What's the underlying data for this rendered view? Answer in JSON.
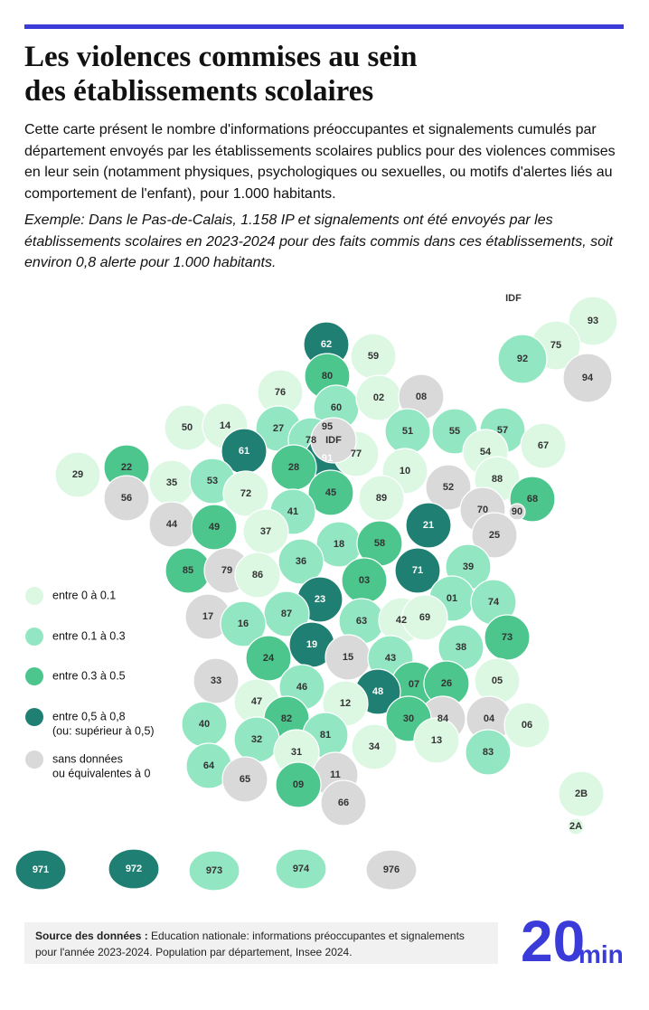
{
  "header": {
    "title": [
      "Les violences commises au sein",
      "des établissements scolaires"
    ],
    "description": "Cette carte présent le nombre d'informations préoccupantes et  signalements cumulés par département envoyés par les établissements  scolaires publics pour des violences commises en leur sein (notamment physiques, psychologiques ou sexuelles, ou motifs d'alertes liés au comportement de l'enfant), pour 1.000 habitants.",
    "example": "Exemple: Dans le Pas-de-Calais, 1.158 IP et signalements ont été envoyés par les établissements scolaires en 2023-2024 pour des faits commis dans ces établissements, soit environ 0,8 alerte pour 1.000 habitants."
  },
  "legend": [
    {
      "lines": [
        "entre 0 à 0.1"
      ],
      "color": "#dcf8e3"
    },
    {
      "lines": [
        "entre 0.1 à 0.3"
      ],
      "color": "#92e6c2"
    },
    {
      "lines": [
        "entre 0.3 à 0.5"
      ],
      "color": "#4cc68d"
    },
    {
      "lines": [
        "entre 0,5 à 0,8",
        "(ou: supérieur à 0,5)"
      ],
      "color": "#1e7f72"
    },
    {
      "lines": [
        "sans données",
        "ou équivalentes à 0"
      ],
      "color": "#d9d9d9"
    }
  ],
  "departments": [
    {
      "code": "62",
      "class": 3
    },
    {
      "code": "59",
      "class": 0
    },
    {
      "code": "80",
      "class": 2
    },
    {
      "code": "76",
      "class": 0
    },
    {
      "code": "60",
      "class": 1
    },
    {
      "code": "02",
      "class": 0
    },
    {
      "code": "08",
      "class": 4
    },
    {
      "code": "50",
      "class": 0
    },
    {
      "code": "14",
      "class": 0
    },
    {
      "code": "27",
      "class": 1
    },
    {
      "code": "95",
      "class": 0
    },
    {
      "code": "51",
      "class": 1
    },
    {
      "code": "55",
      "class": 1
    },
    {
      "code": "57",
      "class": 1
    },
    {
      "code": "67",
      "class": 0
    },
    {
      "code": "78",
      "class": 1
    },
    {
      "code": "61",
      "class": 3
    },
    {
      "code": "91",
      "class": 3
    },
    {
      "code": "77",
      "class": 0
    },
    {
      "code": "54",
      "class": 0
    },
    {
      "code": "29",
      "class": 0
    },
    {
      "code": "22",
      "class": 2
    },
    {
      "code": "28",
      "class": 2
    },
    {
      "code": "10",
      "class": 0
    },
    {
      "code": "88",
      "class": 0
    },
    {
      "code": "35",
      "class": 0
    },
    {
      "code": "53",
      "class": 1
    },
    {
      "code": "72",
      "class": 0
    },
    {
      "code": "45",
      "class": 2
    },
    {
      "code": "52",
      "class": 4
    },
    {
      "code": "68",
      "class": 2
    },
    {
      "code": "56",
      "class": 4
    },
    {
      "code": "89",
      "class": 0
    },
    {
      "code": "41",
      "class": 1
    },
    {
      "code": "70",
      "class": 4
    },
    {
      "code": "90",
      "class": 4
    },
    {
      "code": "44",
      "class": 4
    },
    {
      "code": "49",
      "class": 2
    },
    {
      "code": "21",
      "class": 3
    },
    {
      "code": "37",
      "class": 0
    },
    {
      "code": "25",
      "class": 4
    },
    {
      "code": "18",
      "class": 1
    },
    {
      "code": "58",
      "class": 2
    },
    {
      "code": "85",
      "class": 2
    },
    {
      "code": "79",
      "class": 4
    },
    {
      "code": "36",
      "class": 1
    },
    {
      "code": "71",
      "class": 3
    },
    {
      "code": "39",
      "class": 1
    },
    {
      "code": "86",
      "class": 0
    },
    {
      "code": "03",
      "class": 2
    },
    {
      "code": "23",
      "class": 3
    },
    {
      "code": "01",
      "class": 1
    },
    {
      "code": "74",
      "class": 1
    },
    {
      "code": "17",
      "class": 4
    },
    {
      "code": "87",
      "class": 1
    },
    {
      "code": "63",
      "class": 1
    },
    {
      "code": "42",
      "class": 0
    },
    {
      "code": "69",
      "class": 0
    },
    {
      "code": "16",
      "class": 1
    },
    {
      "code": "73",
      "class": 2
    },
    {
      "code": "19",
      "class": 3
    },
    {
      "code": "38",
      "class": 1
    },
    {
      "code": "24",
      "class": 2
    },
    {
      "code": "15",
      "class": 4
    },
    {
      "code": "43",
      "class": 1
    },
    {
      "code": "07",
      "class": 2
    },
    {
      "code": "26",
      "class": 2
    },
    {
      "code": "33",
      "class": 4
    },
    {
      "code": "46",
      "class": 1
    },
    {
      "code": "05",
      "class": 0
    },
    {
      "code": "48",
      "class": 3
    },
    {
      "code": "47",
      "class": 0
    },
    {
      "code": "12",
      "class": 0
    },
    {
      "code": "04",
      "class": 4
    },
    {
      "code": "40",
      "class": 1
    },
    {
      "code": "82",
      "class": 2
    },
    {
      "code": "84",
      "class": 4
    },
    {
      "code": "30",
      "class": 2
    },
    {
      "code": "06",
      "class": 0
    },
    {
      "code": "32",
      "class": 1
    },
    {
      "code": "81",
      "class": 1
    },
    {
      "code": "13",
      "class": 0
    },
    {
      "code": "34",
      "class": 0
    },
    {
      "code": "83",
      "class": 1
    },
    {
      "code": "31",
      "class": 0
    },
    {
      "code": "64",
      "class": 1
    },
    {
      "code": "11",
      "class": 4
    },
    {
      "code": "65",
      "class": 4
    },
    {
      "code": "09",
      "class": 2
    },
    {
      "code": "66",
      "class": 4
    },
    {
      "code": "2B",
      "class": 0
    },
    {
      "code": "2A",
      "class": 0
    },
    {
      "code": "IDF",
      "class": 4
    }
  ],
  "idf_inset": {
    "label": "IDF",
    "departments": [
      {
        "code": "93",
        "class": 0
      },
      {
        "code": "75",
        "class": 0
      },
      {
        "code": "92",
        "class": 1
      },
      {
        "code": "94",
        "class": 4
      }
    ]
  },
  "overseas": [
    {
      "code": "971",
      "class": 3
    },
    {
      "code": "972",
      "class": 3
    },
    {
      "code": "973",
      "class": 1
    },
    {
      "code": "974",
      "class": 1
    },
    {
      "code": "976",
      "class": 4
    }
  ],
  "footer": {
    "source_label": "Source des données :",
    "source_text": "Education nationale: informations préoccupantes et signalements pour l'année 2023-2024. Population par département, Insee 2024.",
    "logo": [
      "20",
      "min"
    ]
  }
}
